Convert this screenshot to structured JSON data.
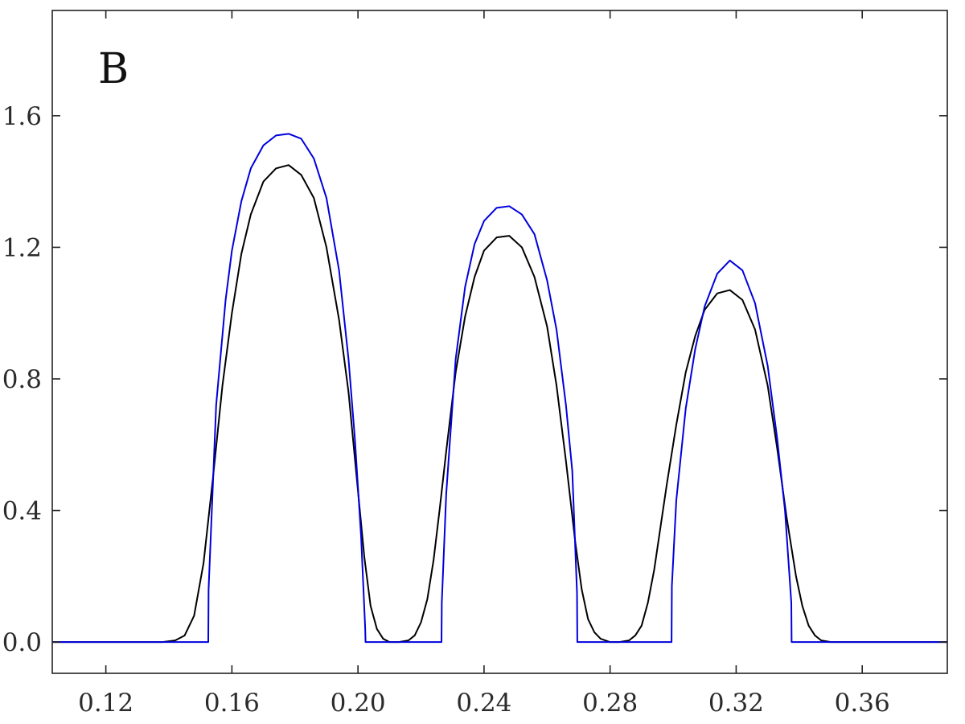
{
  "chart_data": {
    "type": "line",
    "title": "",
    "panel_label": "B",
    "xlabel": "",
    "ylabel": "",
    "xlim": [
      0.103,
      0.387
    ],
    "ylim": [
      -0.095,
      1.92
    ],
    "x_ticks": [
      0.12,
      0.16,
      0.2,
      0.24,
      0.28,
      0.32,
      0.36
    ],
    "x_tick_labels": [
      "0.12",
      "0.16",
      "0.20",
      "0.24",
      "0.28",
      "0.32",
      "0.36"
    ],
    "y_ticks": [
      0.0,
      0.4,
      0.8,
      1.2,
      1.6
    ],
    "y_tick_labels": [
      "0.0",
      "0.4",
      "0.8",
      "1.2",
      "1.6"
    ],
    "grid": false,
    "legend": "none",
    "series": [
      {
        "color": "#0000dd",
        "x": [
          0.103,
          0.1525,
          0.1526,
          0.155,
          0.158,
          0.16,
          0.163,
          0.166,
          0.17,
          0.174,
          0.178,
          0.182,
          0.186,
          0.19,
          0.194,
          0.197,
          0.199,
          0.201,
          0.2023,
          0.2024,
          0.2265,
          0.2266,
          0.228,
          0.231,
          0.234,
          0.237,
          0.24,
          0.244,
          0.248,
          0.252,
          0.256,
          0.26,
          0.263,
          0.266,
          0.268,
          0.2695,
          0.2696,
          0.2995,
          0.2996,
          0.301,
          0.304,
          0.307,
          0.31,
          0.314,
          0.318,
          0.322,
          0.326,
          0.33,
          0.333,
          0.3355,
          0.3375,
          0.3376,
          0.387
        ],
        "y": [
          0.0,
          0.0,
          0.16,
          0.72,
          1.04,
          1.19,
          1.34,
          1.44,
          1.51,
          1.54,
          1.545,
          1.53,
          1.47,
          1.35,
          1.13,
          0.86,
          0.62,
          0.32,
          0.04,
          0.0,
          0.0,
          0.12,
          0.45,
          0.86,
          1.08,
          1.21,
          1.28,
          1.32,
          1.325,
          1.3,
          1.24,
          1.1,
          0.95,
          0.72,
          0.52,
          0.15,
          0.0,
          0.0,
          0.17,
          0.43,
          0.71,
          0.89,
          1.02,
          1.12,
          1.16,
          1.13,
          1.03,
          0.84,
          0.62,
          0.4,
          0.12,
          0.0,
          0.0
        ]
      },
      {
        "color": "#000000",
        "x": [
          0.103,
          0.138,
          0.142,
          0.145,
          0.148,
          0.151,
          0.154,
          0.157,
          0.16,
          0.163,
          0.166,
          0.17,
          0.174,
          0.178,
          0.182,
          0.186,
          0.19,
          0.194,
          0.197,
          0.2,
          0.202,
          0.204,
          0.206,
          0.208,
          0.21,
          0.213,
          0.216,
          0.218,
          0.22,
          0.222,
          0.224,
          0.226,
          0.228,
          0.231,
          0.234,
          0.237,
          0.24,
          0.244,
          0.248,
          0.252,
          0.256,
          0.26,
          0.263,
          0.266,
          0.269,
          0.271,
          0.273,
          0.275,
          0.277,
          0.28,
          0.283,
          0.286,
          0.288,
          0.29,
          0.292,
          0.294,
          0.296,
          0.298,
          0.301,
          0.304,
          0.307,
          0.31,
          0.314,
          0.318,
          0.322,
          0.326,
          0.33,
          0.333,
          0.336,
          0.339,
          0.341,
          0.343,
          0.345,
          0.347,
          0.35,
          0.387
        ],
        "y": [
          0.0,
          0.0,
          0.005,
          0.02,
          0.08,
          0.24,
          0.5,
          0.78,
          1.0,
          1.18,
          1.3,
          1.4,
          1.44,
          1.45,
          1.42,
          1.35,
          1.2,
          0.98,
          0.76,
          0.46,
          0.26,
          0.11,
          0.04,
          0.01,
          0.0,
          0.0,
          0.005,
          0.02,
          0.06,
          0.13,
          0.25,
          0.41,
          0.58,
          0.82,
          0.99,
          1.11,
          1.19,
          1.23,
          1.235,
          1.2,
          1.11,
          0.96,
          0.78,
          0.55,
          0.3,
          0.16,
          0.07,
          0.03,
          0.01,
          0.0,
          0.0,
          0.005,
          0.02,
          0.05,
          0.12,
          0.22,
          0.35,
          0.48,
          0.66,
          0.82,
          0.93,
          1.01,
          1.06,
          1.07,
          1.04,
          0.95,
          0.78,
          0.59,
          0.38,
          0.2,
          0.11,
          0.05,
          0.02,
          0.005,
          0.0,
          0.0
        ]
      }
    ]
  }
}
